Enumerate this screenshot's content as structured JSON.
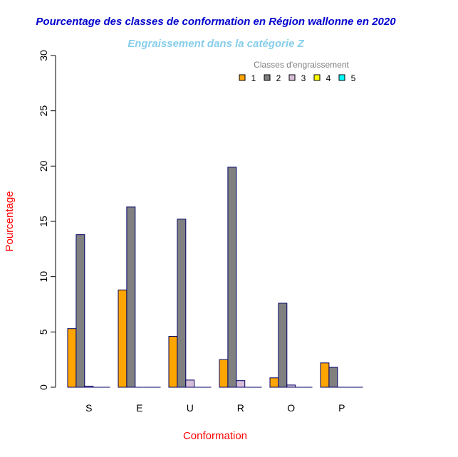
{
  "chart_data": {
    "type": "bar",
    "title": "Pourcentage des classes de conformation en Région wallonne en 2020",
    "subtitle": "Engraissement dans la catégorie Z",
    "xlabel": "Conformation",
    "ylabel": "Pourcentage",
    "ylim": [
      0,
      30
    ],
    "yticks": [
      "0",
      "5",
      "10",
      "15",
      "20",
      "25",
      "30"
    ],
    "categories": [
      "S",
      "E",
      "U",
      "R",
      "O",
      "P"
    ],
    "legend_title": "Classes d'engraissement",
    "legend_position": "top-right",
    "series": [
      {
        "name": "1",
        "color": "#FFA500",
        "values": [
          5.3,
          8.8,
          4.6,
          2.5,
          0.85,
          2.2
        ]
      },
      {
        "name": "2",
        "color": "#808080",
        "values": [
          13.8,
          16.3,
          15.2,
          19.9,
          7.6,
          1.8
        ]
      },
      {
        "name": "3",
        "color": "#D8BFD8",
        "values": [
          0.1,
          0,
          0.65,
          0.6,
          0.2,
          0
        ]
      },
      {
        "name": "4",
        "color": "#FFFF00",
        "values": [
          0,
          0,
          0,
          0,
          0,
          0
        ]
      },
      {
        "name": "5",
        "color": "#00FFFF",
        "values": [
          0,
          0,
          0,
          0,
          0,
          0
        ]
      }
    ],
    "colors": {
      "title": "#0000CD",
      "subtitle": "#87CEEB",
      "axis_label": "#FF0000",
      "bar_border": "#000066"
    }
  }
}
